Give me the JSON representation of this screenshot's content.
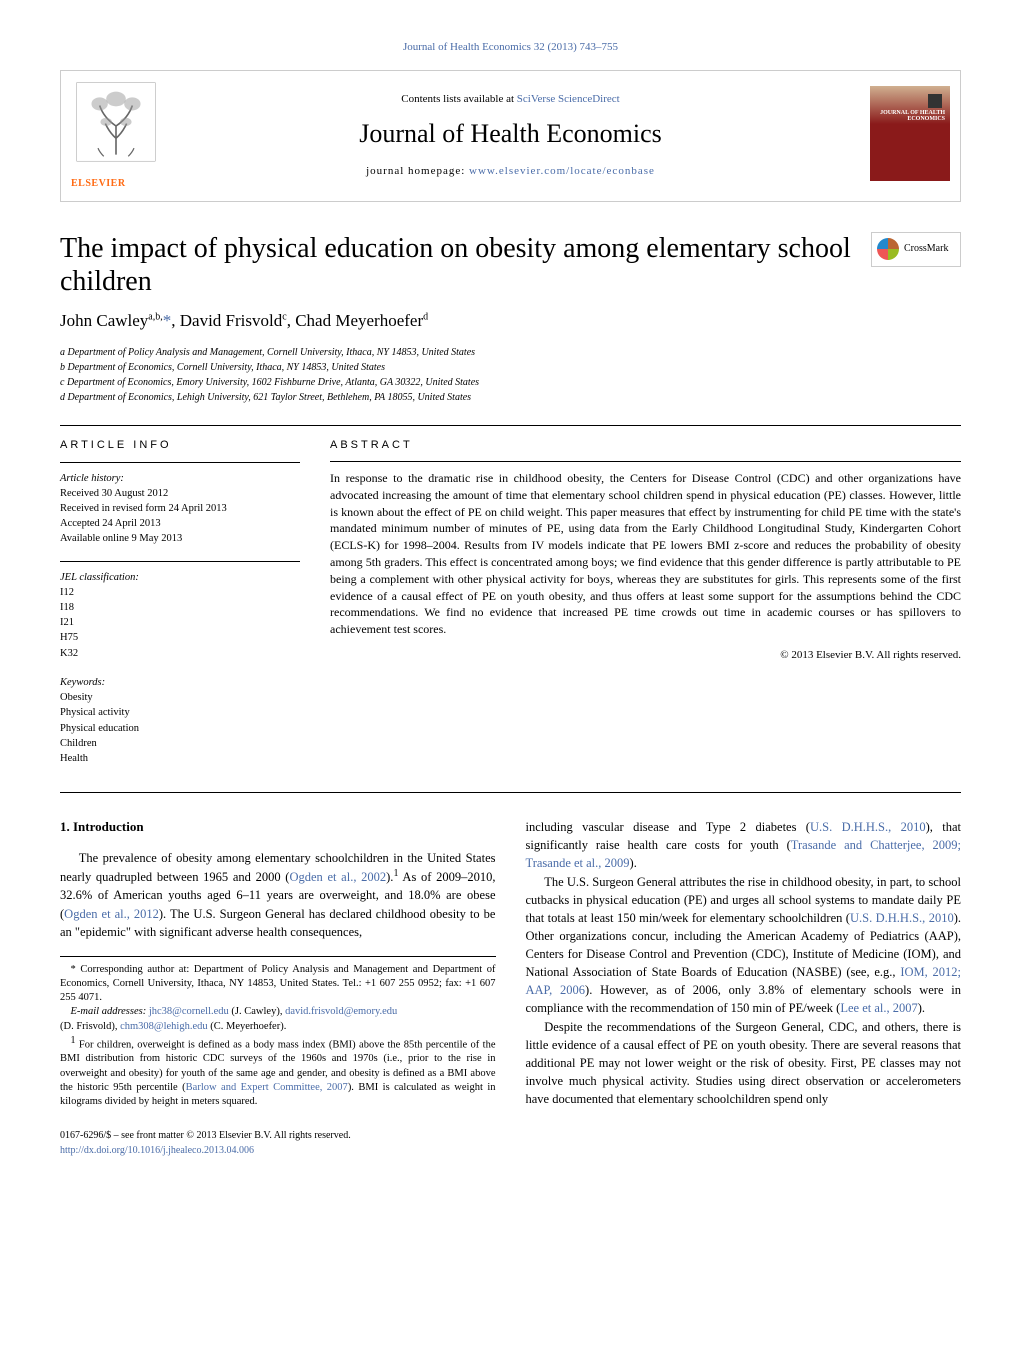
{
  "top_link": {
    "journal": "Journal of Health Economics",
    "citation": "32 (2013) 743–755"
  },
  "header": {
    "contents_prefix": "Contents lists available at ",
    "contents_link": "SciVerse ScienceDirect",
    "journal_name": "Journal of Health Economics",
    "homepage_prefix": "journal homepage: ",
    "homepage_link": "www.elsevier.com/locate/econbase",
    "publisher": "ELSEVIER",
    "cover_label": "JOURNAL OF\nHEALTH\nECONOMICS"
  },
  "title": "The impact of physical education on obesity among elementary school children",
  "crossmark": "CrossMark",
  "authors_html": "John Cawley<span class='sup'>a,b,</span><a href='#'>*</a>, David Frisvold<span class='sup'>c</span>, Chad Meyerhoefer<span class='sup'>d</span>",
  "affiliations": [
    "a Department of Policy Analysis and Management, Cornell University, Ithaca, NY 14853, United States",
    "b Department of Economics, Cornell University, Ithaca, NY 14853, United States",
    "c Department of Economics, Emory University, 1602 Fishburne Drive, Atlanta, GA 30322, United States",
    "d Department of Economics, Lehigh University, 621 Taylor Street, Bethlehem, PA 18055, United States"
  ],
  "article_info": {
    "heading": "article info",
    "history_label": "Article history:",
    "history": [
      "Received 30 August 2012",
      "Received in revised form 24 April 2013",
      "Accepted 24 April 2013",
      "Available online 9 May 2013"
    ],
    "jel_label": "JEL classification:",
    "jel": [
      "I12",
      "I18",
      "I21",
      "H75",
      "K32"
    ],
    "keywords_label": "Keywords:",
    "keywords": [
      "Obesity",
      "Physical activity",
      "Physical education",
      "Children",
      "Health"
    ]
  },
  "abstract": {
    "heading": "abstract",
    "text": "In response to the dramatic rise in childhood obesity, the Centers for Disease Control (CDC) and other organizations have advocated increasing the amount of time that elementary school children spend in physical education (PE) classes. However, little is known about the effect of PE on child weight. This paper measures that effect by instrumenting for child PE time with the state's mandated minimum number of minutes of PE, using data from the Early Childhood Longitudinal Study, Kindergarten Cohort (ECLS-K) for 1998–2004. Results from IV models indicate that PE lowers BMI z-score and reduces the probability of obesity among 5th graders. This effect is concentrated among boys; we find evidence that this gender difference is partly attributable to PE being a complement with other physical activity for boys, whereas they are substitutes for girls. This represents some of the first evidence of a causal effect of PE on youth obesity, and thus offers at least some support for the assumptions behind the CDC recommendations. We find no evidence that increased PE time crowds out time in academic courses or has spillovers to achievement test scores.",
    "copyright": "© 2013 Elsevier B.V. All rights reserved."
  },
  "section1": {
    "heading": "1.  Introduction",
    "p1_pre": "The prevalence of obesity among elementary schoolchildren in the United States nearly quadrupled between 1965 and 2000 (",
    "p1_link1": "Ogden et al., 2002",
    "p1_mid1": ").",
    "p1_sup": "1",
    "p1_mid2": " As of 2009–2010, 32.6% of American youths aged 6–11 years are overweight, and 18.0% are obese (",
    "p1_link2": "Ogden et al., 2012",
    "p1_post": "). The U.S. Surgeon General has declared childhood obesity to be an \"epidemic\" with significant adverse health consequences,"
  },
  "col2": {
    "p1_pre": "including vascular disease and Type 2 diabetes (",
    "p1_l1": "U.S. D.H.H.S., 2010",
    "p1_m1": "), that significantly raise health care costs for youth (",
    "p1_l2": "Trasande and Chatterjee, 2009; Trasande et al., 2009",
    "p1_post": ").",
    "p2_pre": "The U.S. Surgeon General attributes the rise in childhood obesity, in part, to school cutbacks in physical education (PE) and urges all school systems to mandate daily PE that totals at least 150 min/week for elementary schoolchildren (",
    "p2_l1": "U.S. D.H.H.S., 2010",
    "p2_m1": "). Other organizations concur, including the American Academy of Pediatrics (AAP), Centers for Disease Control and Prevention (CDC), Institute of Medicine (IOM), and National Association of State Boards of Education (NASBE) (see, e.g., ",
    "p2_l2": "IOM, 2012; AAP, 2006",
    "p2_m2": "). However, as of 2006, only 3.8% of elementary schools were in compliance with the recommendation of 150 min of PE/week (",
    "p2_l3": "Lee et al., 2007",
    "p2_post": ").",
    "p3": "Despite the recommendations of the Surgeon General, CDC, and others, there is little evidence of a causal effect of PE on youth obesity. There are several reasons that additional PE may not lower weight or the risk of obesity. First, PE classes may not involve much physical activity. Studies using direct observation or accelerometers have documented that elementary schoolchildren spend only"
  },
  "footnotes": {
    "corr_star": "*",
    "corr_text": " Corresponding author at: Department of Policy Analysis and Management and Department of Economics, Cornell University, Ithaca, NY 14853, United States. Tel.: +1 607 255 0952; fax: +1 607 255 4071.",
    "email_label": "E-mail addresses: ",
    "email1": "jhc38@cornell.edu",
    "email1_who": " (J. Cawley), ",
    "email2": "david.frisvold@emory.edu",
    "email2_who": " (D. Frisvold), ",
    "email3": "chm308@lehigh.edu",
    "email3_who": " (C. Meyerhoefer).",
    "fn1_num": "1",
    "fn1_pre": " For children, overweight is defined as a body mass index (BMI) above the 85th percentile of the BMI distribution from historic CDC surveys of the 1960s and 1970s (i.e., prior to the rise in overweight and obesity) for youth of the same age and gender, and obesity is defined as a BMI above the historic 95th percentile (",
    "fn1_link": "Barlow and Expert Committee, 2007",
    "fn1_post": "). BMI is calculated as weight in kilograms divided by height in meters squared."
  },
  "footer": {
    "line1": "0167-6296/$ – see front matter © 2013 Elsevier B.V. All rights reserved.",
    "doi": "http://dx.doi.org/10.1016/j.jhealeco.2013.04.006"
  },
  "colors": {
    "link": "#4a6ca8",
    "elsevier_orange": "#ff6a13",
    "rule": "#000000",
    "border": "#cccccc",
    "cover_red": "#8a1a1a"
  }
}
